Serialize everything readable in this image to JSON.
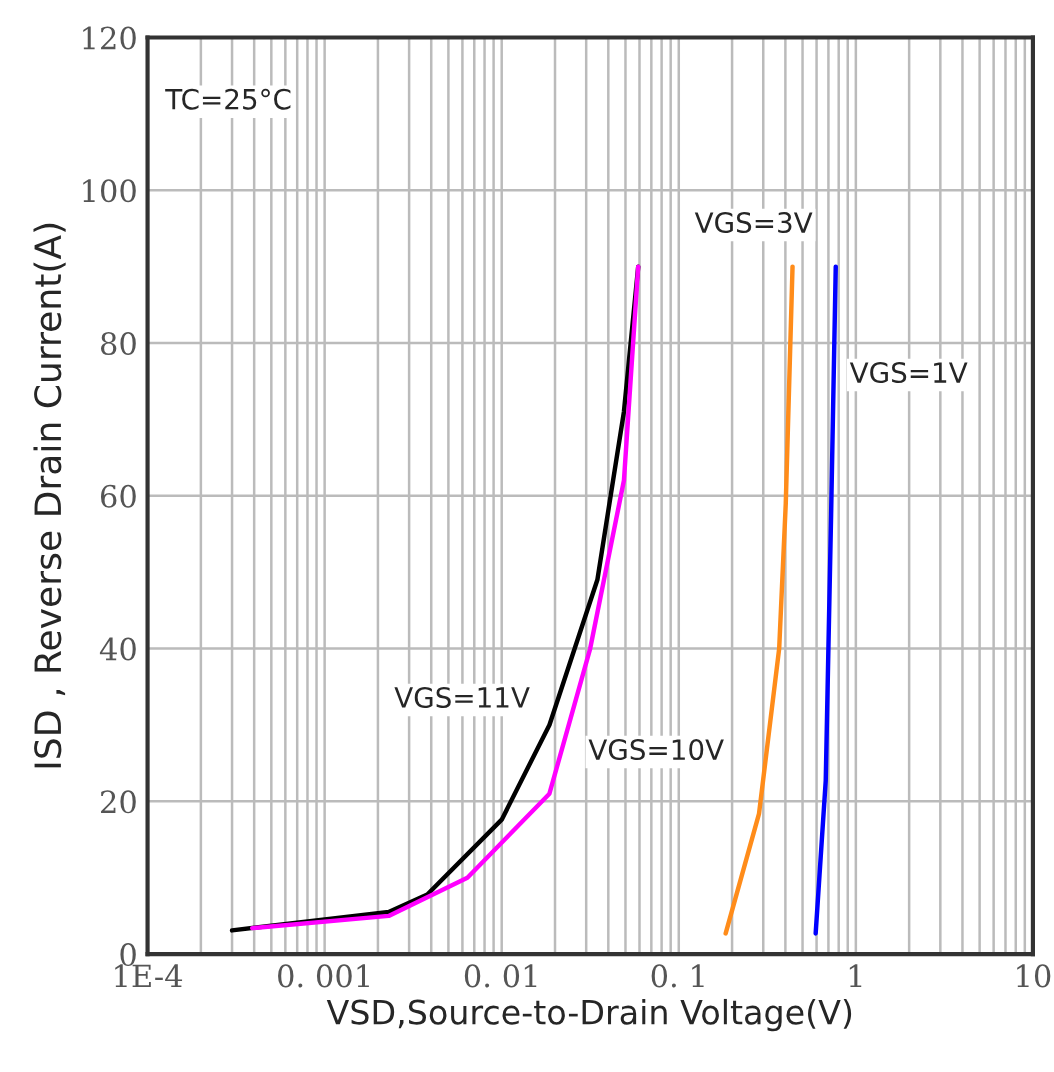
{
  "chart_data": {
    "type": "line",
    "xlabel": "VSD,Source-to-Drain Voltage(V)",
    "ylabel": "ISD , Reverse Drain Current(A)",
    "log": "x",
    "grid": true,
    "legend": false,
    "marker": "none",
    "line_style": "solid",
    "xlim": [
      0.0001,
      10
    ],
    "xticks": [
      {
        "value": 0.0001,
        "label": "1E-4"
      },
      {
        "value": 0.001,
        "label": "0. 001"
      },
      {
        "value": 0.01,
        "label": "0. 01"
      },
      {
        "value": 0.1,
        "label": "0. 1"
      },
      1,
      10
    ],
    "ylim": [
      0,
      120
    ],
    "yticks": [
      0,
      20,
      40,
      60,
      80,
      100,
      120
    ],
    "series": [
      {
        "name": "VGS=11V",
        "color": "#000000",
        "x": [
          0.0003,
          0.0023,
          0.0038,
          0.01,
          0.0186,
          0.0347,
          0.049,
          0.059
        ],
        "values": [
          3.1,
          5.5,
          7.8,
          17.6,
          30,
          49,
          71,
          90
        ]
      },
      {
        "name": "VGS=10V",
        "color": "#ff00ff",
        "x": [
          0.00039,
          0.0023,
          0.0064,
          0.0186,
          0.0316,
          0.049,
          0.059
        ],
        "values": [
          3.4,
          5.0,
          10,
          21,
          40,
          62,
          90
        ]
      },
      {
        "name": "VGS=3V",
        "color": "#ff8c1a",
        "x": [
          0.184,
          0.284,
          0.369,
          0.402,
          0.439
        ],
        "values": [
          2.7,
          18.4,
          40,
          59,
          90
        ]
      },
      {
        "name": "VGS=1V",
        "color": "#0000ff",
        "x": [
          0.593,
          0.676,
          0.725,
          0.77
        ],
        "values": [
          2.7,
          22.7,
          57.6,
          90
        ]
      }
    ],
    "annotations": [
      "TC=25°C"
    ]
  }
}
